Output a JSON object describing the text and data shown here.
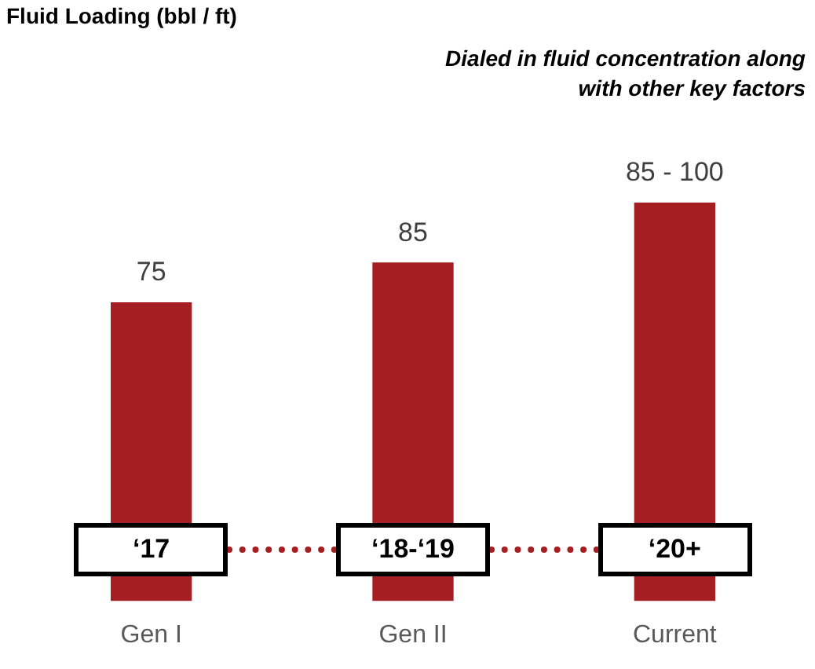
{
  "chart_data": {
    "type": "bar",
    "title": "Fluid Loading (bbl / ft)",
    "categories": [
      "Gen I",
      "Gen II",
      "Current"
    ],
    "values": [
      75,
      85,
      100
    ],
    "color": "#a51e22",
    "value_labels": [
      "75",
      "85",
      null
    ],
    "ylim": [
      0,
      100
    ],
    "grid": false,
    "legend": false,
    "tick_labels": "x",
    "annotations": [
      "Dialed in fluid concentration along with other key factors",
      "‘17",
      "‘18-‘19",
      "‘20+",
      {
        "text": "85 - 100",
        "x": "Current",
        "y": 100
      }
    ]
  }
}
